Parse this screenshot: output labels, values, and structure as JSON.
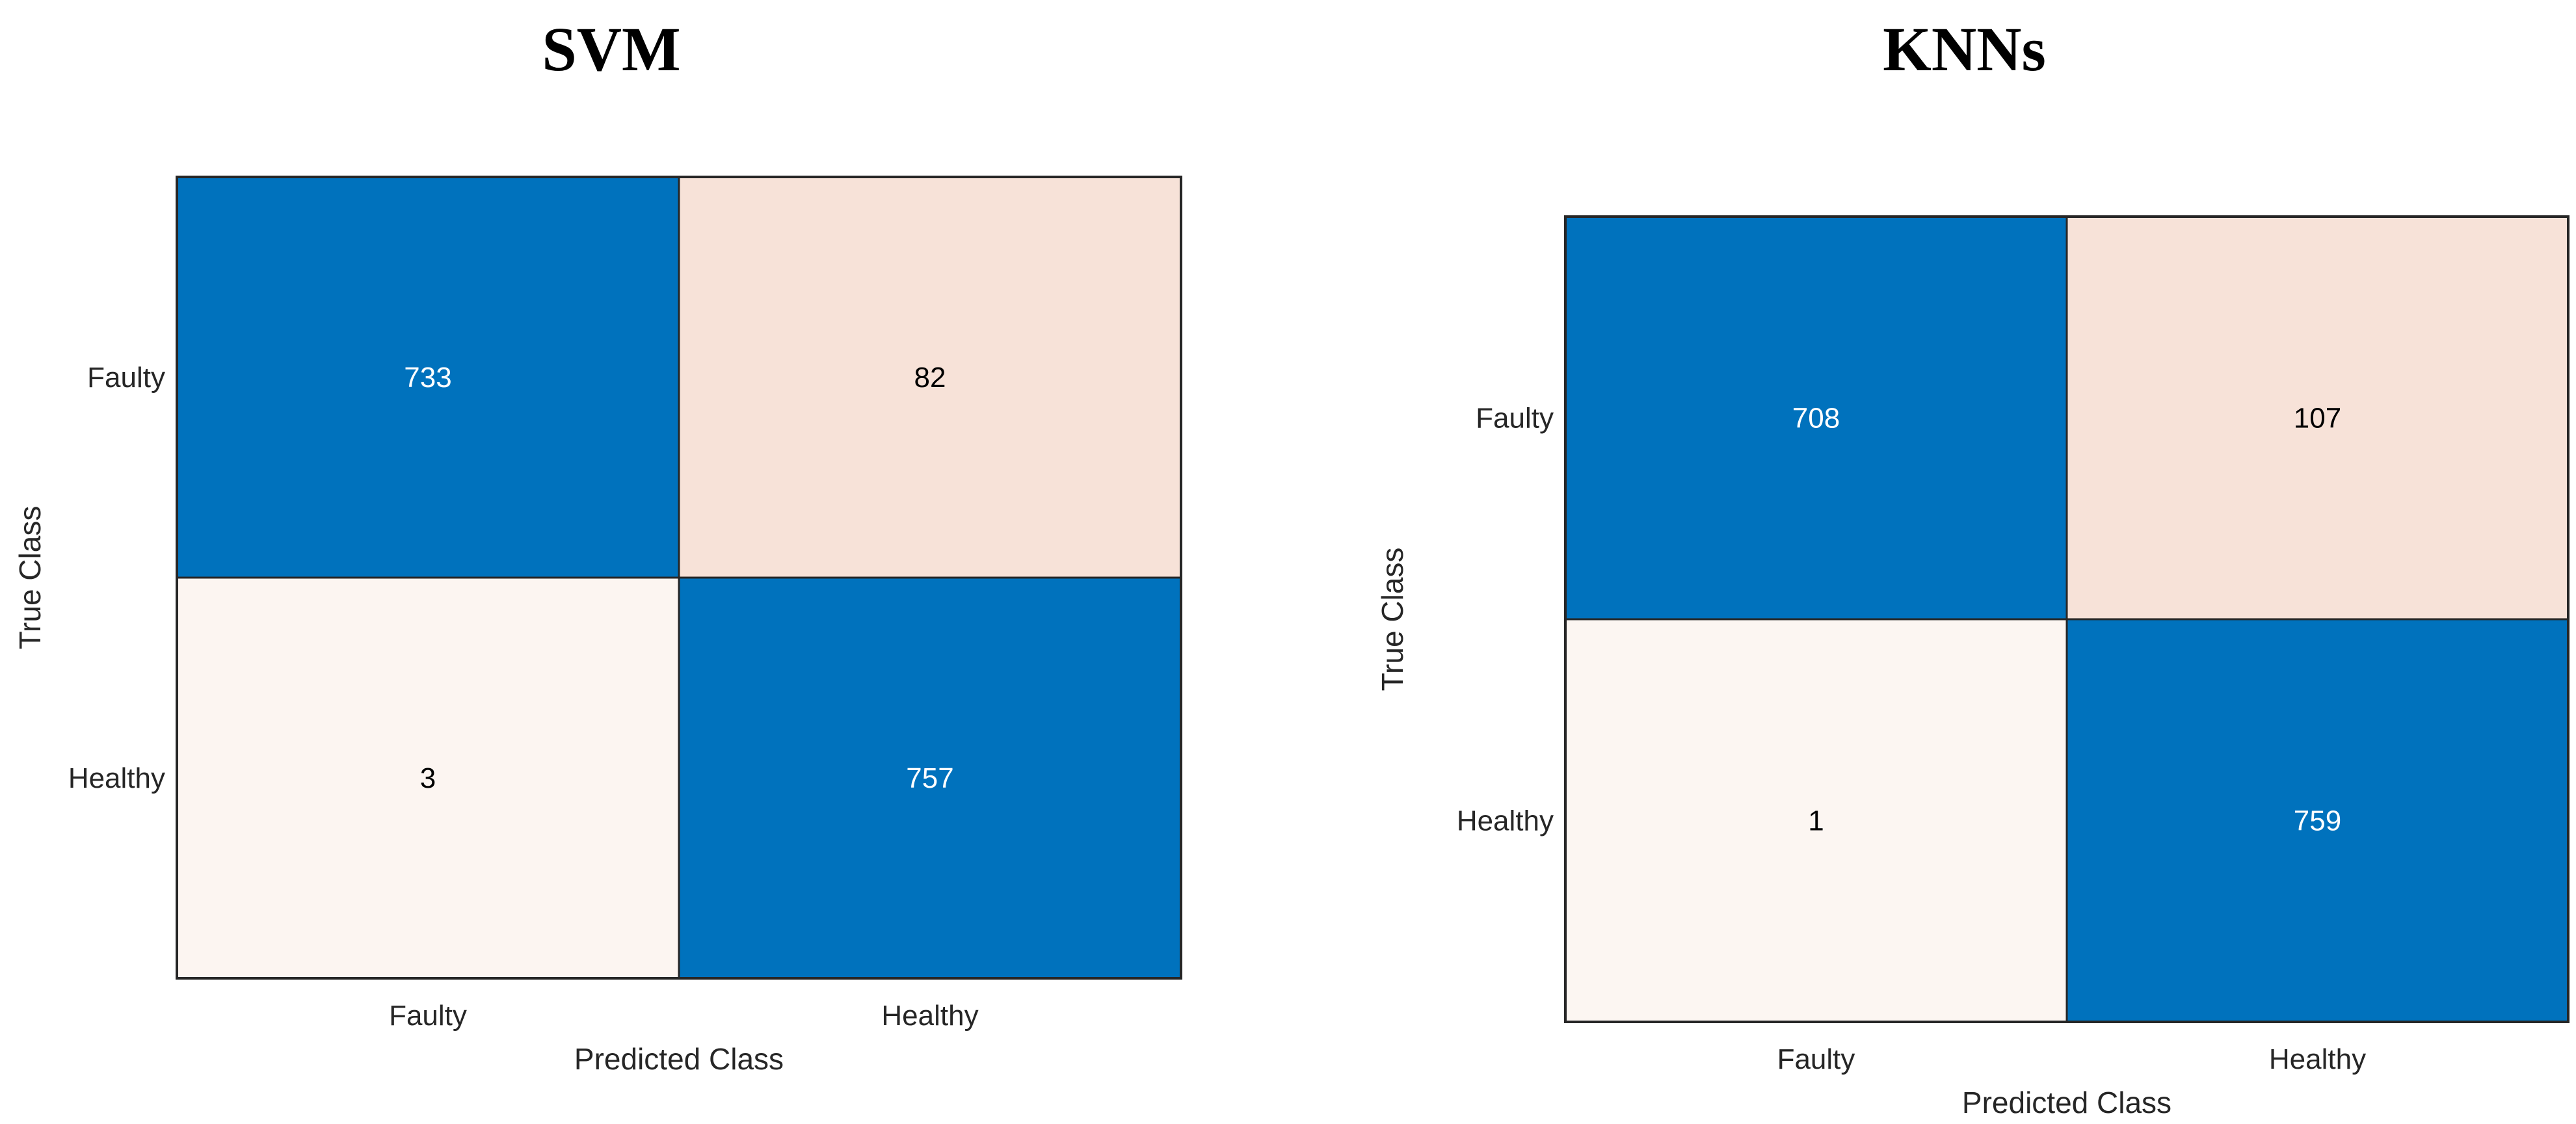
{
  "chart_data": [
    {
      "type": "heatmap",
      "title": "SVM",
      "xlabel": "Predicted Class",
      "ylabel": "True Class",
      "x_categories": [
        "Faulty",
        "Healthy"
      ],
      "y_categories": [
        "Faulty",
        "Healthy"
      ],
      "values": [
        [
          733,
          82
        ],
        [
          3,
          757
        ]
      ],
      "colors": {
        "high_diagonal": "#0072bd",
        "low_off_diagonal": "#fcf6f2",
        "high_off_diagonal": "#f7e2d8",
        "text_dark": "#000000",
        "text_light": "#ffffff"
      }
    },
    {
      "type": "heatmap",
      "title": "KNNs",
      "xlabel": "Predicted Class",
      "ylabel": "True Class",
      "x_categories": [
        "Faulty",
        "Healthy"
      ],
      "y_categories": [
        "Faulty",
        "Healthy"
      ],
      "values": [
        [
          708,
          107
        ],
        [
          1,
          759
        ]
      ],
      "colors": {
        "high_diagonal": "#0072bd",
        "low_off_diagonal": "#fcf6f2",
        "high_off_diagonal": "#f7e2d8",
        "text_dark": "#000000",
        "text_light": "#ffffff"
      }
    }
  ]
}
